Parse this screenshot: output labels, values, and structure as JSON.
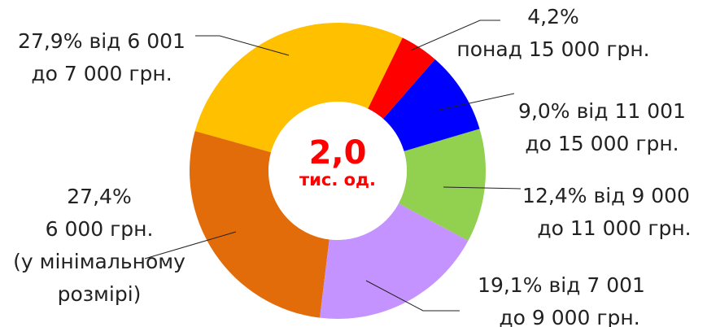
{
  "chart_data": {
    "type": "donut",
    "center_label": "2,0",
    "center_sublabel": "тис. од.",
    "categories": [
      [
        "понад 15 000 грн."
      ],
      [
        "від 11 001",
        "до 15 000 грн."
      ],
      [
        "від 9 000",
        "до 11 000 грн."
      ],
      [
        "від 7 001",
        "до  9 000 грн."
      ],
      [
        "6 000 грн.",
        "(у мінімальному",
        "розмірі)"
      ],
      [
        "від 6 001",
        "до 7 000 грн."
      ]
    ],
    "values": [
      4.2,
      9.0,
      12.4,
      19.1,
      27.4,
      27.9
    ],
    "value_labels": [
      "4,2%",
      "9,0%",
      "12,4%",
      "19,1%",
      "27,4%",
      "27,9%"
    ],
    "colors": [
      "#ff0000",
      "#0000ff",
      "#92d050",
      "#c593ff",
      "#e36c0a",
      "#ffc000"
    ]
  }
}
